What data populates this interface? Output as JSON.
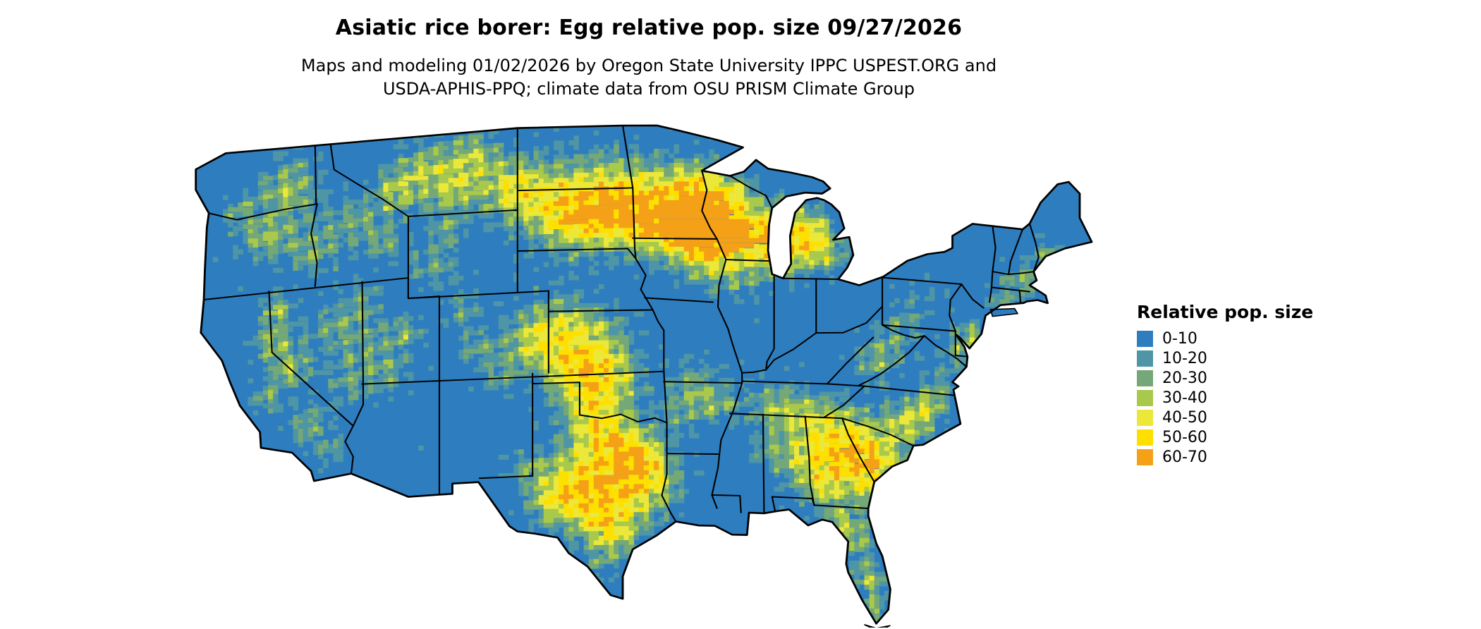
{
  "figure": {
    "title": "Asiatic rice borer: Egg relative pop. size 09/27/2026",
    "subtitle_line1": "Maps and modeling 01/02/2026 by Oregon State University IPPC USPEST.ORG and",
    "subtitle_line2": "USDA-APHIS-PPQ; climate data from OSU PRISM Climate Group"
  },
  "legend": {
    "title": "Relative pop. size",
    "entries": [
      {
        "label": "0-10",
        "color": "#2e7ebf"
      },
      {
        "label": "10-20",
        "color": "#4e95a5"
      },
      {
        "label": "20-30",
        "color": "#74a878"
      },
      {
        "label": "30-40",
        "color": "#a9c94c"
      },
      {
        "label": "40-50",
        "color": "#ece83a"
      },
      {
        "label": "50-60",
        "color": "#fee000"
      },
      {
        "label": "60-70",
        "color": "#f4a118"
      }
    ]
  },
  "map": {
    "region": "Contiguous United States",
    "background_color": "#ffffff",
    "border_color": "#000000",
    "base_value_color": "#2e7ebf"
  },
  "chart_data": {
    "type": "heatmap",
    "title": "Asiatic rice borer: Egg relative pop. size 09/27/2026",
    "legend_title": "Relative pop. size",
    "bins": [
      {
        "range": "0-10",
        "color": "#2e7ebf"
      },
      {
        "range": "10-20",
        "color": "#4e95a5"
      },
      {
        "range": "20-30",
        "color": "#74a878"
      },
      {
        "range": "30-40",
        "color": "#a9c94c"
      },
      {
        "range": "40-50",
        "color": "#ece83a"
      },
      {
        "range": "50-60",
        "color": "#fee000"
      },
      {
        "range": "60-70",
        "color": "#f4a118"
      }
    ],
    "notes": "Raster map of the contiguous United States; predominantly 0-10 (blue) with 30-60 (yellow) concentrations across the northern plains, central plains, Texas, the Southeast, Florida and western mountain ranges; rare 60-70 (orange) flecks."
  }
}
